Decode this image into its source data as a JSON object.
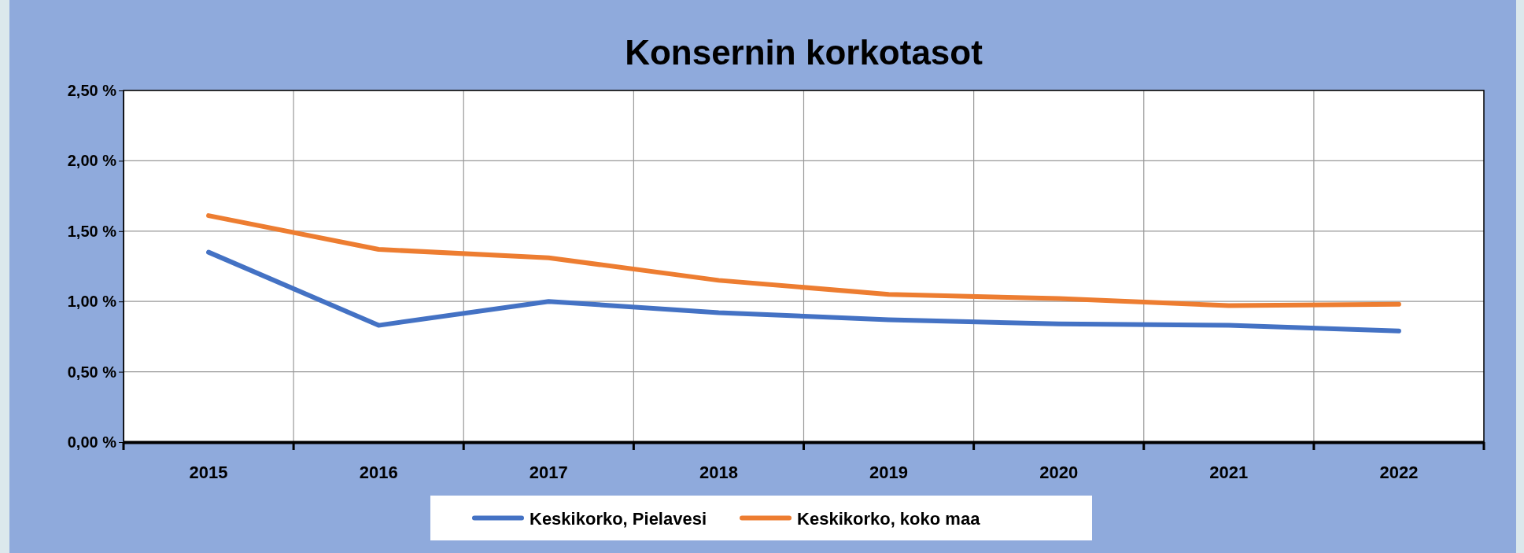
{
  "chart_data": {
    "type": "line",
    "title": "Konsernin korkotasot",
    "categories": [
      "2015",
      "2016",
      "2017",
      "2018",
      "2019",
      "2020",
      "2021",
      "2022"
    ],
    "series": [
      {
        "name": "Keskikorko, Pielavesi",
        "color": "#4472c4",
        "values": [
          1.35,
          0.83,
          1.0,
          0.92,
          0.87,
          0.84,
          0.83,
          0.79
        ]
      },
      {
        "name": "Keskikorko, koko maa",
        "color": "#ed7d31",
        "values": [
          1.61,
          1.37,
          1.31,
          1.15,
          1.05,
          1.02,
          0.97,
          0.98
        ]
      }
    ],
    "ylim": [
      0,
      2.5
    ],
    "yticks": [
      {
        "value": 0,
        "label": "0,00 %"
      },
      {
        "value": 0.5,
        "label": "0,50 %"
      },
      {
        "value": 1,
        "label": "1,00 %"
      },
      {
        "value": 1.5,
        "label": "1,50 %"
      },
      {
        "value": 2,
        "label": "2,00 %"
      },
      {
        "value": 2.5,
        "label": "2,50 %"
      }
    ],
    "grid": true,
    "legend": "bottom",
    "marker": "none",
    "line_style": "solid"
  }
}
